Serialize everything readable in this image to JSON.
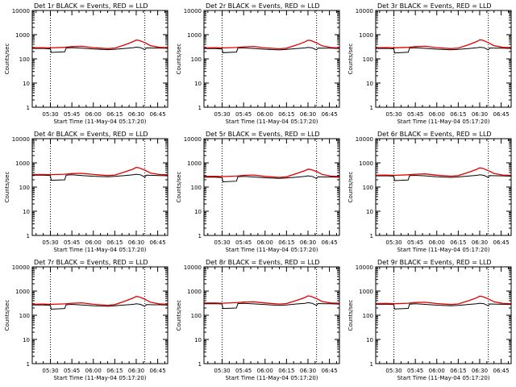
{
  "page": {
    "background": "#ffffff",
    "axis_color": "#000000"
  },
  "chart_data": [
    {
      "type": "line",
      "title": "Det 1r BLACK = Events, RED = LLD",
      "xlabel": "Start Time (11-May-04 05:17:20)",
      "ylabel": "Counts/sec",
      "xticks": [
        "05:30",
        "05:45",
        "06:00",
        "06:15",
        "06:30",
        "06:45"
      ],
      "xtick_minutes": [
        30,
        45,
        60,
        75,
        90,
        105
      ],
      "xlim_minutes": [
        17.3,
        112
      ],
      "yscale": "log",
      "ylim": [
        1,
        10000
      ],
      "yticks": [
        "1",
        "10",
        "100",
        "1000",
        "10000"
      ],
      "dotted_lines_minutes": [
        30,
        96
      ],
      "series": [
        {
          "color": "#000000",
          "x": [
            17.3,
            25,
            30,
            30.5,
            40,
            41,
            45,
            52,
            60,
            70,
            75,
            82,
            88,
            90,
            93,
            96,
            97,
            102,
            106,
            110,
            112
          ],
          "y": [
            270,
            270,
            260,
            185,
            195,
            280,
            290,
            275,
            255,
            240,
            250,
            270,
            290,
            305,
            290,
            240,
            285,
            280,
            280,
            275,
            270
          ]
        },
        {
          "color": "#e00000",
          "x": [
            17.3,
            25,
            30,
            40,
            45,
            52,
            60,
            70,
            75,
            82,
            88,
            90,
            92,
            96,
            100,
            106,
            112
          ],
          "y": [
            290,
            290,
            285,
            300,
            320,
            330,
            290,
            265,
            280,
            380,
            520,
            600,
            580,
            470,
            350,
            300,
            290
          ]
        }
      ]
    },
    {
      "type": "line",
      "title": "Det 2r BLACK = Events, RED = LLD",
      "xlabel": "Start Time (11-May-04 05:17:20)",
      "ylabel": "Counts/sec",
      "xticks": [
        "05:30",
        "05:45",
        "06:00",
        "06:15",
        "06:30",
        "06:45"
      ],
      "xtick_minutes": [
        30,
        45,
        60,
        75,
        90,
        105
      ],
      "xlim_minutes": [
        17.3,
        112
      ],
      "yscale": "log",
      "ylim": [
        1,
        10000
      ],
      "yticks": [
        "1",
        "10",
        "100",
        "1000",
        "10000"
      ],
      "dotted_lines_minutes": [
        30,
        96
      ],
      "series": [
        {
          "color": "#000000",
          "x": [
            17.3,
            25,
            30,
            30.5,
            40,
            41,
            45,
            52,
            60,
            70,
            75,
            82,
            88,
            90,
            93,
            96,
            97,
            102,
            106,
            110,
            112
          ],
          "y": [
            265,
            268,
            258,
            180,
            190,
            275,
            285,
            270,
            250,
            235,
            245,
            265,
            285,
            300,
            285,
            235,
            280,
            275,
            275,
            270,
            265
          ]
        },
        {
          "color": "#e00000",
          "x": [
            17.3,
            25,
            30,
            40,
            45,
            52,
            60,
            70,
            75,
            82,
            88,
            90,
            92,
            96,
            100,
            106,
            112
          ],
          "y": [
            285,
            288,
            282,
            295,
            315,
            325,
            285,
            262,
            275,
            375,
            510,
            590,
            570,
            460,
            345,
            295,
            285
          ]
        }
      ]
    },
    {
      "type": "line",
      "title": "Det 3r BLACK = Events, RED = LLD",
      "xlabel": "Start Time (11-May-04 05:17:20)",
      "ylabel": "Counts/sec",
      "xticks": [
        "05:30",
        "05:45",
        "06:00",
        "06:15",
        "06:30",
        "06:45"
      ],
      "xtick_minutes": [
        30,
        45,
        60,
        75,
        90,
        105
      ],
      "xlim_minutes": [
        17.3,
        112
      ],
      "yscale": "log",
      "ylim": [
        1,
        10000
      ],
      "yticks": [
        "1",
        "10",
        "100",
        "1000",
        "10000"
      ],
      "dotted_lines_minutes": [
        30,
        96
      ],
      "series": [
        {
          "color": "#000000",
          "x": [
            17.3,
            25,
            30,
            30.5,
            40,
            41,
            45,
            52,
            60,
            70,
            75,
            82,
            88,
            90,
            93,
            96,
            97,
            102,
            106,
            110,
            112
          ],
          "y": [
            270,
            272,
            262,
            175,
            188,
            278,
            288,
            272,
            252,
            238,
            248,
            268,
            288,
            302,
            288,
            238,
            282,
            278,
            278,
            272,
            268
          ]
        },
        {
          "color": "#e00000",
          "x": [
            17.3,
            25,
            30,
            40,
            45,
            52,
            60,
            70,
            75,
            82,
            88,
            90,
            92,
            96,
            100,
            106,
            112
          ],
          "y": [
            290,
            292,
            287,
            300,
            322,
            330,
            290,
            265,
            280,
            380,
            520,
            610,
            590,
            470,
            350,
            300,
            290
          ]
        }
      ]
    },
    {
      "type": "line",
      "title": "Det 4r BLACK = Events, RED = LLD",
      "xlabel": "Start Time (11-May-04 05:17:20)",
      "ylabel": "Counts/sec",
      "xticks": [
        "05:30",
        "05:45",
        "06:00",
        "06:15",
        "06:30",
        "06:45"
      ],
      "xtick_minutes": [
        30,
        45,
        60,
        75,
        90,
        105
      ],
      "xlim_minutes": [
        17.3,
        112
      ],
      "yscale": "log",
      "ylim": [
        1,
        10000
      ],
      "yticks": [
        "1",
        "10",
        "100",
        "1000",
        "10000"
      ],
      "dotted_lines_minutes": [
        30,
        96
      ],
      "series": [
        {
          "color": "#000000",
          "x": [
            17.3,
            25,
            30,
            30.5,
            40,
            41,
            45,
            52,
            60,
            70,
            75,
            82,
            88,
            90,
            93,
            96,
            97,
            102,
            106,
            110,
            112
          ],
          "y": [
            310,
            312,
            300,
            190,
            200,
            310,
            320,
            300,
            280,
            265,
            275,
            300,
            320,
            340,
            320,
            260,
            310,
            305,
            300,
            295,
            290
          ]
        },
        {
          "color": "#e00000",
          "x": [
            17.3,
            25,
            30,
            40,
            45,
            52,
            60,
            70,
            75,
            82,
            88,
            90,
            92,
            96,
            100,
            106,
            112
          ],
          "y": [
            330,
            332,
            325,
            340,
            360,
            370,
            330,
            300,
            315,
            420,
            560,
            650,
            620,
            500,
            380,
            330,
            320
          ]
        }
      ]
    },
    {
      "type": "line",
      "title": "Det 5r BLACK = Events, RED = LLD",
      "xlabel": "Start Time (11-May-04 05:17:20)",
      "ylabel": "Counts/sec",
      "xticks": [
        "05:30",
        "05:45",
        "06:00",
        "06:15",
        "06:30",
        "06:45"
      ],
      "xtick_minutes": [
        30,
        45,
        60,
        75,
        90,
        105
      ],
      "xlim_minutes": [
        17.3,
        112
      ],
      "yscale": "log",
      "ylim": [
        1,
        10000
      ],
      "yticks": [
        "1",
        "10",
        "100",
        "1000",
        "10000"
      ],
      "dotted_lines_minutes": [
        30,
        96
      ],
      "series": [
        {
          "color": "#000000",
          "x": [
            17.3,
            25,
            30,
            30.5,
            40,
            41,
            45,
            52,
            60,
            70,
            75,
            82,
            88,
            90,
            93,
            96,
            97,
            102,
            106,
            110,
            112
          ],
          "y": [
            255,
            258,
            248,
            165,
            175,
            265,
            275,
            262,
            242,
            228,
            238,
            258,
            275,
            290,
            275,
            225,
            268,
            262,
            262,
            258,
            255
          ]
        },
        {
          "color": "#e00000",
          "x": [
            17.3,
            25,
            30,
            40,
            45,
            52,
            60,
            70,
            75,
            82,
            88,
            90,
            92,
            96,
            100,
            106,
            112
          ],
          "y": [
            275,
            278,
            272,
            285,
            305,
            315,
            275,
            252,
            265,
            360,
            480,
            550,
            530,
            440,
            330,
            285,
            275
          ]
        }
      ]
    },
    {
      "type": "line",
      "title": "Det 6r BLACK = Events, RED = LLD",
      "xlabel": "Start Time (11-May-04 05:17:20)",
      "ylabel": "Counts/sec",
      "xticks": [
        "05:30",
        "05:45",
        "06:00",
        "06:15",
        "06:30",
        "06:45"
      ],
      "xtick_minutes": [
        30,
        45,
        60,
        75,
        90,
        105
      ],
      "xlim_minutes": [
        17.3,
        112
      ],
      "yscale": "log",
      "ylim": [
        1,
        10000
      ],
      "yticks": [
        "1",
        "10",
        "100",
        "1000",
        "10000"
      ],
      "dotted_lines_minutes": [
        30,
        96
      ],
      "series": [
        {
          "color": "#000000",
          "x": [
            17.3,
            25,
            30,
            30.5,
            40,
            41,
            45,
            52,
            60,
            70,
            75,
            82,
            88,
            90,
            93,
            96,
            97,
            102,
            106,
            110,
            112
          ],
          "y": [
            290,
            292,
            282,
            185,
            195,
            295,
            305,
            290,
            268,
            252,
            262,
            285,
            305,
            320,
            305,
            250,
            298,
            292,
            290,
            285,
            280
          ]
        },
        {
          "color": "#e00000",
          "x": [
            17.3,
            25,
            30,
            40,
            45,
            52,
            60,
            70,
            75,
            82,
            88,
            90,
            92,
            96,
            100,
            106,
            112
          ],
          "y": [
            310,
            312,
            305,
            320,
            340,
            350,
            310,
            282,
            298,
            400,
            540,
            620,
            600,
            480,
            365,
            315,
            305
          ]
        }
      ]
    },
    {
      "type": "line",
      "title": "Det 7r BLACK = Events, RED = LLD",
      "xlabel": "Start Time (11-May-04 05:17:20)",
      "ylabel": "Counts/sec",
      "xticks": [
        "05:30",
        "05:45",
        "06:00",
        "06:15",
        "06:30",
        "06:45"
      ],
      "xtick_minutes": [
        30,
        45,
        60,
        75,
        90,
        105
      ],
      "xlim_minutes": [
        17.3,
        112
      ],
      "yscale": "log",
      "ylim": [
        1,
        10000
      ],
      "yticks": [
        "1",
        "10",
        "100",
        "1000",
        "10000"
      ],
      "dotted_lines_minutes": [
        30,
        96
      ],
      "series": [
        {
          "color": "#000000",
          "x": [
            17.3,
            25,
            30,
            30.5,
            40,
            41,
            45,
            52,
            60,
            70,
            75,
            82,
            88,
            90,
            93,
            96,
            97,
            102,
            106,
            110,
            112
          ],
          "y": [
            265,
            268,
            258,
            178,
            190,
            272,
            282,
            268,
            248,
            235,
            245,
            265,
            282,
            298,
            282,
            232,
            278,
            272,
            272,
            268,
            262
          ]
        },
        {
          "color": "#e00000",
          "x": [
            17.3,
            25,
            30,
            40,
            45,
            52,
            60,
            70,
            75,
            82,
            88,
            90,
            92,
            96,
            100,
            106,
            112
          ],
          "y": [
            285,
            288,
            282,
            295,
            315,
            325,
            285,
            260,
            275,
            380,
            520,
            600,
            575,
            460,
            345,
            295,
            285
          ]
        }
      ]
    },
    {
      "type": "line",
      "title": "Det 8r BLACK = Events, RED = LLD",
      "xlabel": "Start Time (11-May-04 05:17:20)",
      "ylabel": "Counts/sec",
      "xticks": [
        "05:30",
        "05:45",
        "06:00",
        "06:15",
        "06:30",
        "06:45"
      ],
      "xtick_minutes": [
        30,
        45,
        60,
        75,
        90,
        105
      ],
      "xlim_minutes": [
        17.3,
        112
      ],
      "yscale": "log",
      "ylim": [
        1,
        10000
      ],
      "yticks": [
        "1",
        "10",
        "100",
        "1000",
        "10000"
      ],
      "dotted_lines_minutes": [
        30,
        96
      ],
      "series": [
        {
          "color": "#000000",
          "x": [
            17.3,
            25,
            30,
            30.5,
            40,
            41,
            45,
            52,
            60,
            70,
            75,
            82,
            88,
            90,
            93,
            96,
            97,
            102,
            106,
            110,
            112
          ],
          "y": [
            300,
            302,
            292,
            190,
            200,
            302,
            312,
            295,
            275,
            258,
            268,
            292,
            312,
            330,
            312,
            255,
            305,
            300,
            298,
            292,
            288
          ]
        },
        {
          "color": "#e00000",
          "x": [
            17.3,
            25,
            30,
            40,
            45,
            52,
            60,
            70,
            75,
            82,
            88,
            90,
            92,
            96,
            100,
            106,
            112
          ],
          "y": [
            320,
            322,
            315,
            330,
            350,
            360,
            320,
            290,
            305,
            410,
            540,
            630,
            605,
            485,
            370,
            320,
            312
          ]
        }
      ]
    },
    {
      "type": "line",
      "title": "Det 9r BLACK = Events, RED = LLD",
      "xlabel": "Start Time (11-May-04 05:17:20)",
      "ylabel": "Counts/sec",
      "xticks": [
        "05:30",
        "05:45",
        "06:00",
        "06:15",
        "06:30",
        "06:45"
      ],
      "xtick_minutes": [
        30,
        45,
        60,
        75,
        90,
        105
      ],
      "xlim_minutes": [
        17.3,
        112
      ],
      "yscale": "log",
      "ylim": [
        1,
        10000
      ],
      "yticks": [
        "1",
        "10",
        "100",
        "1000",
        "10000"
      ],
      "dotted_lines_minutes": [
        30,
        96
      ],
      "series": [
        {
          "color": "#000000",
          "x": [
            17.3,
            25,
            30,
            30.5,
            40,
            41,
            45,
            52,
            60,
            70,
            75,
            82,
            88,
            90,
            93,
            96,
            97,
            102,
            106,
            110,
            112
          ],
          "y": [
            285,
            288,
            278,
            182,
            192,
            288,
            298,
            282,
            262,
            248,
            258,
            280,
            300,
            315,
            300,
            245,
            292,
            288,
            285,
            280,
            275
          ]
        },
        {
          "color": "#e00000",
          "x": [
            17.3,
            25,
            30,
            40,
            45,
            52,
            60,
            70,
            75,
            82,
            88,
            90,
            92,
            96,
            100,
            106,
            112
          ],
          "y": [
            305,
            308,
            300,
            315,
            335,
            345,
            305,
            278,
            292,
            395,
            530,
            615,
            590,
            475,
            360,
            310,
            300
          ]
        }
      ]
    }
  ]
}
